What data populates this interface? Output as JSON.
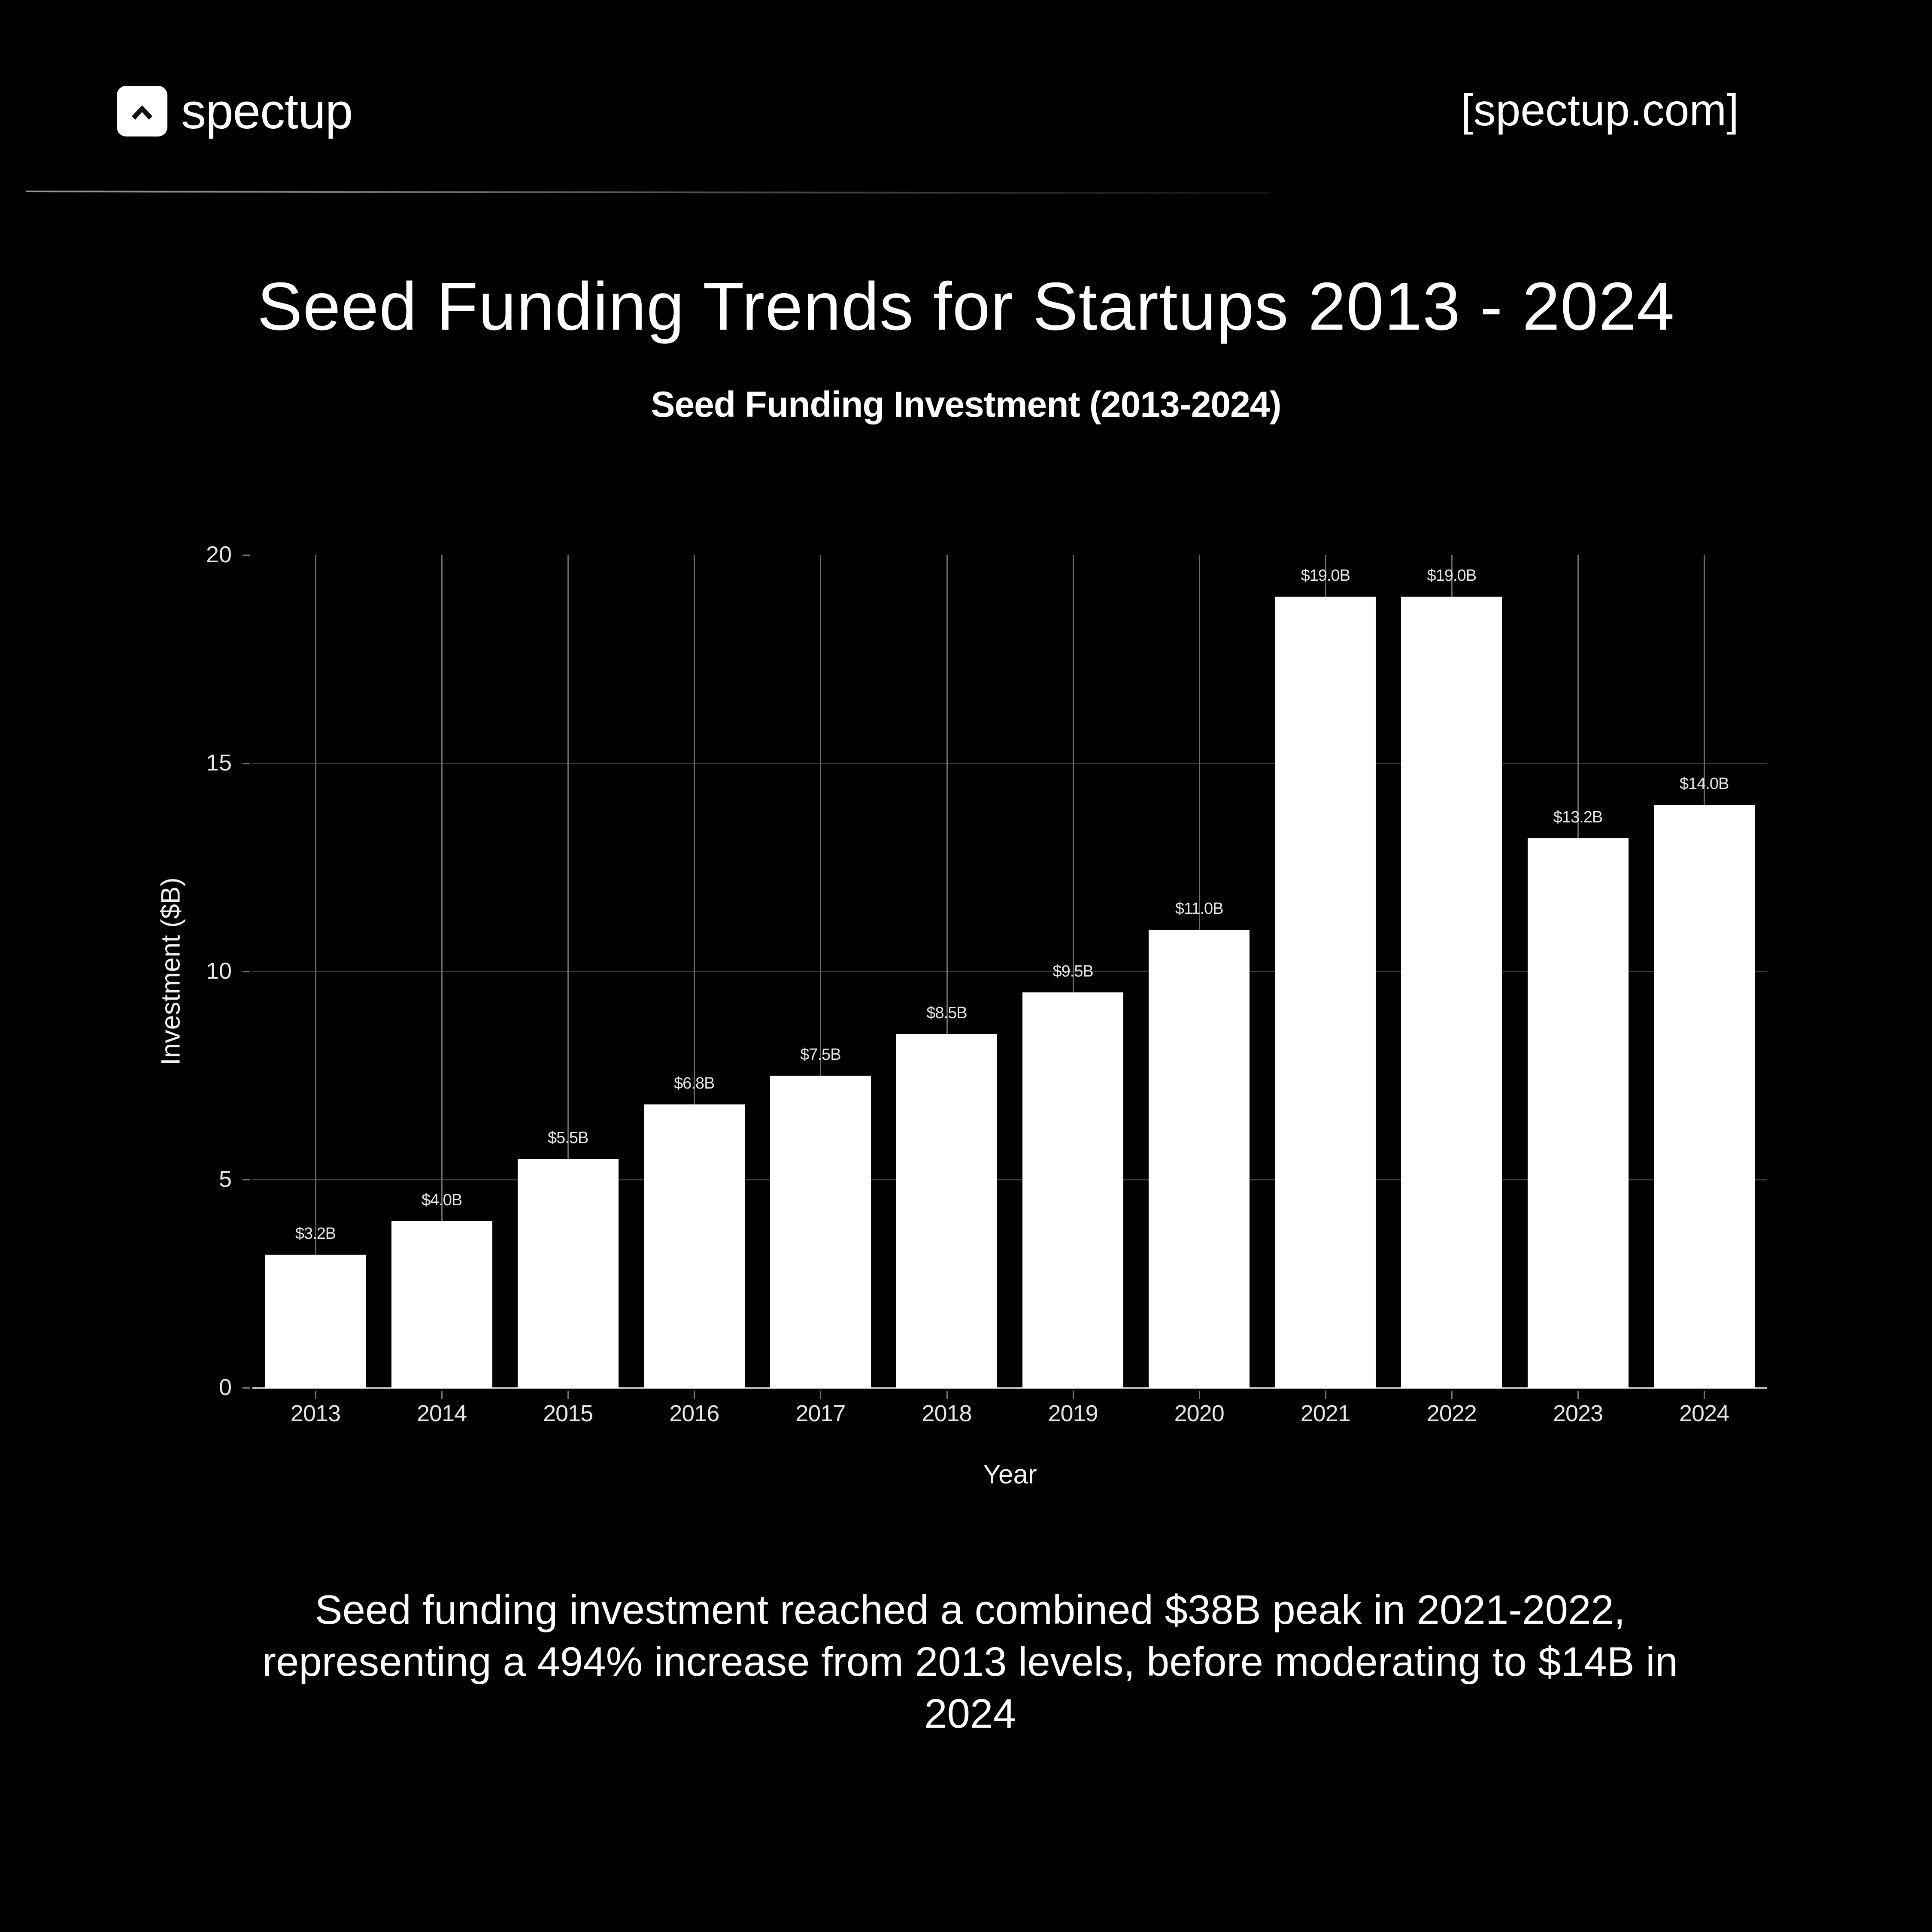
{
  "header": {
    "brand": "spectup",
    "brand_icon": "chevron-up-icon",
    "site_link": "[spectup.com]"
  },
  "page": {
    "title": "Seed Funding Trends for Startups 2013 - 2024",
    "caption": "Seed funding investment reached a combined $38B peak in 2021-2022, representing a 494% increase from 2013 levels, before moderating to $14B in 2024"
  },
  "colors": {
    "background": "#000000",
    "bar": "#ffffff",
    "text": "#ffffff",
    "grid": "#3a3a3a"
  },
  "chart_data": {
    "type": "bar",
    "title": "Seed Funding Investment (2013-2024)",
    "xlabel": "Year",
    "ylabel": "Investment ($B)",
    "categories": [
      "2013",
      "2014",
      "2015",
      "2016",
      "2017",
      "2018",
      "2019",
      "2020",
      "2021",
      "2022",
      "2023",
      "2024"
    ],
    "values": [
      3.2,
      4.0,
      5.5,
      6.8,
      7.5,
      8.5,
      9.5,
      11.0,
      19.0,
      19.0,
      13.2,
      14.0
    ],
    "data_labels": [
      "$3.2B",
      "$4.0B",
      "$5.5B",
      "$6.8B",
      "$7.5B",
      "$8.5B",
      "$9.5B",
      "$11.0B",
      "$19.0B",
      "$19.0B",
      "$13.2B",
      "$14.0B"
    ],
    "yticks": [
      "0",
      "5",
      "10",
      "15",
      "20"
    ],
    "ylim": [
      0,
      20
    ],
    "grid": true,
    "legend": false
  }
}
